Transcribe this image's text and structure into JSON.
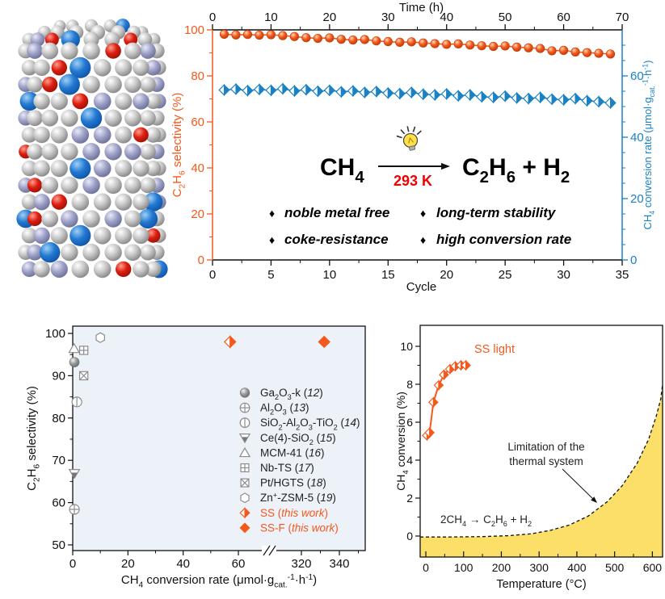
{
  "colors": {
    "orange": "#F4581C",
    "orange_dark": "#c23d07",
    "blue": "#1A82C4",
    "red": "#F00000",
    "black": "#1a1a1a",
    "gray_marker": "#8c8c8c",
    "yellow_fill": "#FBDF69",
    "panel_bg": "#edf1f8",
    "sphere_silver": "#c2c2c2",
    "sphere_lavender": "#9b9ec5",
    "sphere_blue": "#1e78d2",
    "sphere_red": "#d81d10"
  },
  "molecule": {
    "description": "catalyst crystal structure sphere model"
  },
  "reaction": {
    "reactant": "CH_4",
    "products": "C_2H_6 + H_2",
    "condition": "293 K",
    "bullet": "♦",
    "features_col1": [
      "noble metal free",
      "coke-resistance"
    ],
    "features_col2": [
      "long-term stability",
      "high conversion rate"
    ]
  },
  "chart_data": [
    {
      "id": "stability",
      "type": "scatter-line",
      "x_bottom": {
        "label": "Cycle",
        "ticks": [
          0,
          5,
          10,
          15,
          20,
          25,
          30,
          35
        ],
        "range": [
          0,
          35
        ],
        "minor_step": 2.5
      },
      "x_top": {
        "label": "Time (h)",
        "ticks": [
          0,
          10,
          20,
          30,
          40,
          50,
          60,
          70
        ],
        "range": [
          0,
          70
        ],
        "minor_step": 5
      },
      "y_left": {
        "label": "C_2H_6 selectivity (%)",
        "ticks": [
          0,
          20,
          40,
          60,
          80,
          100
        ],
        "range": [
          0,
          100
        ],
        "minor_step": 10
      },
      "y_right": {
        "label": "CH_4 conversion rate (μmol·g_{cat.}^{-1}·h^{-1})",
        "ticks": [
          0,
          20,
          40,
          60
        ],
        "range": [
          0,
          75
        ],
        "minor_step": 5
      },
      "series": [
        {
          "name": "C2H6 selectivity",
          "axis": "left",
          "marker": "sphere-orange",
          "x": [
            1,
            2,
            3,
            4,
            5,
            6,
            7,
            8,
            9,
            10,
            11,
            12,
            13,
            14,
            15,
            16,
            17,
            18,
            19,
            20,
            21,
            22,
            23,
            24,
            25,
            26,
            27,
            28,
            29,
            30,
            31,
            32,
            33,
            34
          ],
          "y": [
            98.1,
            97.8,
            98.0,
            97.7,
            97.9,
            97.5,
            97.1,
            96.6,
            96.3,
            96.5,
            95.9,
            95.6,
            95.8,
            95.2,
            94.9,
            94.6,
            94.8,
            94.3,
            94.0,
            93.7,
            93.9,
            93.4,
            93.1,
            92.8,
            93.0,
            92.5,
            92.2,
            91.9,
            90.9,
            91.1,
            90.4,
            90.1,
            89.8,
            89.5
          ]
        },
        {
          "name": "CH4 conversion rate",
          "axis": "right",
          "marker": "diamond-half-blue",
          "x": [
            1,
            2,
            3,
            4,
            5,
            6,
            7,
            8,
            9,
            10,
            11,
            12,
            13,
            14,
            15,
            16,
            17,
            18,
            19,
            20,
            21,
            22,
            23,
            24,
            25,
            26,
            27,
            28,
            29,
            30,
            31,
            32,
            33,
            34
          ],
          "y": [
            55.4,
            55.7,
            55.2,
            55.6,
            55.3,
            55.8,
            55.1,
            55.5,
            55.0,
            55.3,
            54.8,
            55.1,
            54.6,
            54.9,
            54.4,
            54.2,
            54.6,
            54.0,
            53.8,
            54.1,
            53.5,
            53.8,
            53.2,
            53.0,
            53.4,
            52.8,
            52.6,
            53.0,
            52.4,
            52.2,
            52.6,
            51.9,
            51.6,
            51.2
          ]
        }
      ]
    },
    {
      "id": "comparison",
      "type": "scatter",
      "x": {
        "label": "CH_4 conversion rate (μmol·g_{cat.}^{-1}·h^{-1})",
        "ticks_left_segment": [
          0,
          20,
          40,
          60
        ],
        "minor_left_segment": [
          10,
          30,
          50,
          70
        ],
        "ticks_right_segment": [
          320,
          340
        ],
        "minor_right_segment": [
          330,
          350
        ],
        "break_between": [
          80,
          320
        ]
      },
      "y": {
        "label": "C_2H_6 selectivity (%)",
        "ticks": [
          50,
          60,
          70,
          80,
          90,
          100
        ],
        "range": [
          50,
          100
        ],
        "minor_step": 5
      },
      "points": [
        {
          "label": "Ga_2O_3-k (*12*)",
          "marker": "sphere-gray",
          "x": 0.6,
          "y": 93.2,
          "highlight": false
        },
        {
          "label": "Al_2O_3 (*13*)",
          "marker": "circle-plus",
          "x": 0.6,
          "y": 58.4,
          "highlight": false
        },
        {
          "label": "SiO_2-Al_2O_3-TiO_2 (*14*)",
          "marker": "circle-bar",
          "x": 1.5,
          "y": 83.8,
          "highlight": false
        },
        {
          "label": "Ce(4)-SiO_2 (*15*)",
          "marker": "triangle-down-half",
          "x": 0.6,
          "y": 66.9,
          "highlight": false
        },
        {
          "label": "MCM-41 (*16*)",
          "marker": "triangle-up",
          "x": 0.5,
          "y": 96.4,
          "highlight": false
        },
        {
          "label": "Nb-TS (*17*)",
          "marker": "square-plus",
          "x": 4,
          "y": 96.0,
          "highlight": false
        },
        {
          "label": "Pt/HGTS (*18*)",
          "marker": "square-x",
          "x": 4,
          "y": 90.0,
          "highlight": false
        },
        {
          "label": "Zn^+-ZSM-5 (*19*)",
          "marker": "hexagon",
          "x": 10,
          "y": 99.0,
          "highlight": false
        },
        {
          "label": "SS (*this work*)",
          "marker": "diamond-half",
          "x": 57,
          "y": 98.0,
          "highlight": true
        },
        {
          "label": "SS-F (*this work*)",
          "marker": "diamond-fill",
          "x": 332,
          "y": 98.0,
          "highlight": true
        }
      ]
    },
    {
      "id": "thermal",
      "type": "line-area",
      "x": {
        "label": "Temperature (°C)",
        "ticks": [
          0,
          100,
          200,
          300,
          400,
          500,
          600
        ],
        "range": [
          -15,
          627
        ],
        "minor_step": 50
      },
      "y": {
        "label": "CH_4 conversion (%)",
        "ticks": [
          0,
          2,
          4,
          6,
          8,
          10
        ],
        "range": [
          -1.1,
          11.1
        ],
        "minor_step": 1
      },
      "series": [
        {
          "name": "SS light",
          "label": "SS light",
          "marker": "diamond-half",
          "points": [
            [
              3,
              5.3
            ],
            [
              10,
              5.45
            ],
            [
              20,
              7.05
            ],
            [
              34,
              7.95
            ],
            [
              48,
              8.5
            ],
            [
              64,
              8.8
            ],
            [
              78,
              8.95
            ],
            [
              93,
              9.0
            ],
            [
              106,
              9.0
            ]
          ]
        },
        {
          "name": "thermal limit",
          "style": "dashed-area",
          "points": [
            [
              -15,
              -0.05
            ],
            [
              60,
              -0.05
            ],
            [
              150,
              -0.03
            ],
            [
              220,
              0.02
            ],
            [
              280,
              0.12
            ],
            [
              330,
              0.3
            ],
            [
              380,
              0.58
            ],
            [
              430,
              1.05
            ],
            [
              480,
              1.8
            ],
            [
              520,
              2.65
            ],
            [
              560,
              3.85
            ],
            [
              590,
              5.1
            ],
            [
              610,
              6.3
            ],
            [
              622,
              7.2
            ],
            [
              627,
              8.0
            ]
          ]
        }
      ],
      "annotations": {
        "limitation_lines": [
          "Limitation of the",
          "thermal system"
        ],
        "reaction_equation": "2CH_4 → C_2H_6 + H_2"
      }
    }
  ]
}
